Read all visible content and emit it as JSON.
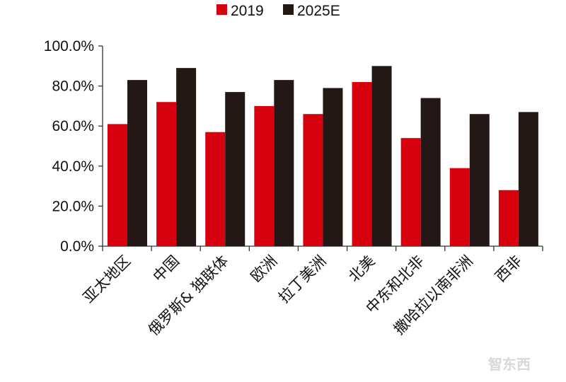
{
  "chart_data": {
    "type": "bar",
    "categories": [
      "亚太地区",
      "中国",
      "俄罗斯& 独联体",
      "欧洲",
      "拉丁美洲",
      "北美",
      "中东和北非",
      "撒哈拉以南非洲",
      "西非"
    ],
    "series": [
      {
        "name": "2019",
        "color": "#d7000f",
        "values": [
          61,
          72,
          57,
          70,
          66,
          82,
          54,
          39,
          28
        ]
      },
      {
        "name": "2025E",
        "color": "#231815",
        "values": [
          83,
          89,
          77,
          83,
          79,
          90,
          74,
          66,
          67
        ]
      }
    ],
    "ylim": [
      0,
      100
    ],
    "yticks": [
      "0.0%",
      "20.0%",
      "40.0%",
      "60.0%",
      "80.0%",
      "100.0%"
    ],
    "legend_position": "top",
    "grid": false,
    "xlabel": "",
    "ylabel": "",
    "title": ""
  },
  "watermark": "智东西"
}
